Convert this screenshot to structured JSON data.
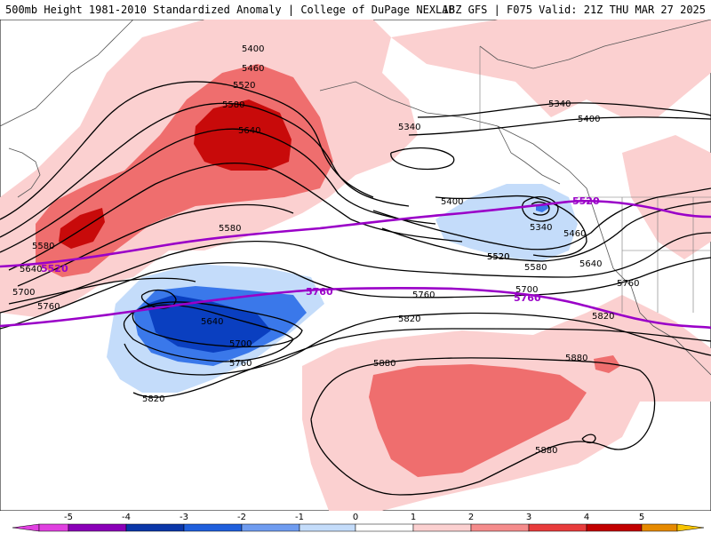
{
  "header": {
    "title": "500mb Height 1981-2010 Standardized Anomaly | College of DuPage NEXLAB",
    "run_info": "18Z GFS | F075 Valid: 21Z THU MAR 27 2025"
  },
  "height_labels": [
    "5400",
    "5460",
    "5520",
    "5580",
    "5640",
    "5340",
    "5340",
    "5400",
    "5400",
    "5520",
    "5340",
    "5460",
    "5520",
    "5580",
    "5640",
    "5580",
    "5580",
    "5640",
    "5700",
    "5760",
    "5640",
    "5700",
    "5760",
    "5760",
    "5700",
    "5820",
    "5820",
    "5880",
    "5880",
    "5880",
    "5760",
    "5820"
  ],
  "thick_contour_labels": [
    "5520",
    "5520",
    "5760",
    "5760"
  ],
  "colorbar": {
    "ticks": [
      "-5",
      "-4",
      "-3",
      "-2",
      "-1",
      "0",
      "1",
      "2",
      "3",
      "4",
      "5"
    ],
    "colors": [
      "#e040e0",
      "#8a00b8",
      "#0a36a8",
      "#1f5fdc",
      "#6f9cf0",
      "#c4dcfa",
      "#ffffff",
      "#fbd0d0",
      "#f58c8c",
      "#e83c3c",
      "#c20000",
      "#e68a00",
      "#f7c400"
    ]
  },
  "anomaly_colors": {
    "strong_positive": "#c80a0a",
    "positive": "#ef6e6e",
    "weak_positive": "#fbd0d0",
    "weak_negative": "#c4dcfa",
    "negative": "#3a78ea",
    "strong_negative": "#0a3fc0",
    "thick_contour": "#9a00c8"
  }
}
